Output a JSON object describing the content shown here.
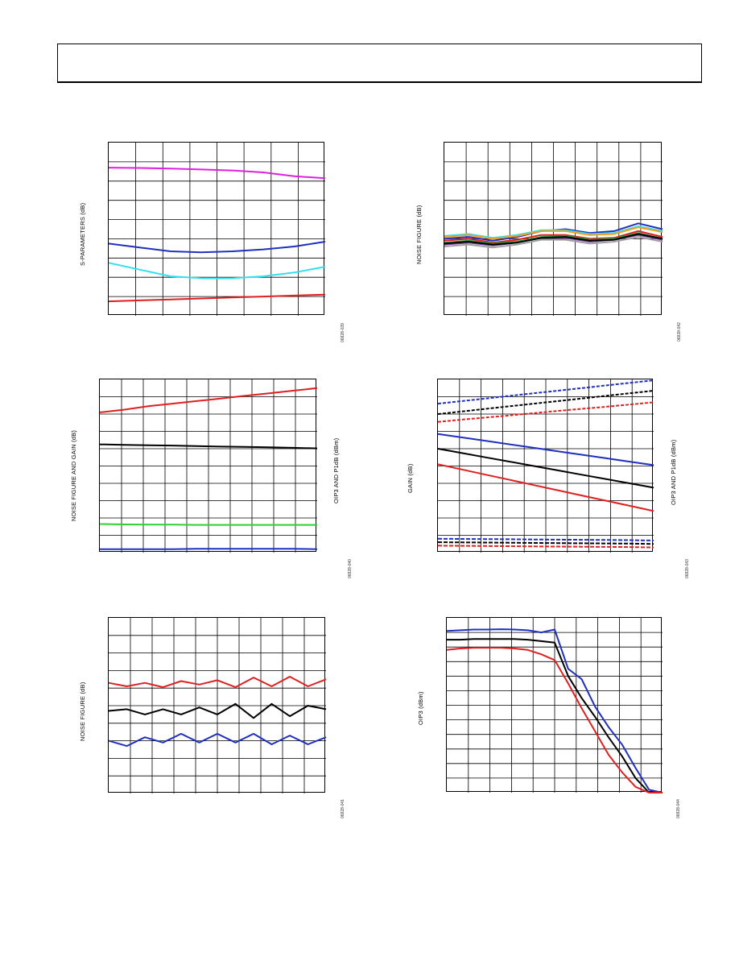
{
  "charts": [
    {
      "id": "c1",
      "type": "line",
      "ylabel": "S-PARAMETERS (dB)",
      "figure_id": "06828-039",
      "grid": {
        "cols": 8,
        "rows": 9
      },
      "series": [
        {
          "color": "#e020e0",
          "y": [
            1.3,
            1.32,
            1.35,
            1.4,
            1.45,
            1.55,
            1.75,
            1.85
          ]
        },
        {
          "color": "#2030c0",
          "y": [
            5.25,
            5.45,
            5.65,
            5.7,
            5.65,
            5.55,
            5.4,
            5.15
          ]
        },
        {
          "color": "#30e0f0",
          "y": [
            6.25,
            6.6,
            6.95,
            7.05,
            7.05,
            6.95,
            6.75,
            6.45
          ]
        },
        {
          "color": "#e02020",
          "y": [
            8.25,
            8.2,
            8.15,
            8.1,
            8.05,
            8.0,
            7.95,
            7.9
          ]
        }
      ]
    },
    {
      "id": "c2",
      "type": "line",
      "ylabel": "NOISE FIGURE (dB)",
      "figure_id": "06828-042",
      "grid": {
        "cols": 10,
        "rows": 9
      },
      "series": [
        {
          "color": "#2030c0",
          "y": [
            5.0,
            4.9,
            5.1,
            4.9,
            4.6,
            4.5,
            4.7,
            4.6,
            4.2,
            4.5
          ]
        },
        {
          "color": "#30e0f0",
          "y": [
            4.85,
            4.75,
            4.95,
            4.8,
            4.55,
            4.55,
            4.75,
            4.7,
            4.35,
            4.6
          ]
        },
        {
          "color": "#f0a020",
          "y": [
            4.9,
            4.8,
            5.0,
            4.85,
            4.6,
            4.6,
            4.8,
            4.75,
            4.4,
            4.65
          ]
        },
        {
          "color": "#e02020",
          "y": [
            5.1,
            5.0,
            5.2,
            5.05,
            4.8,
            4.8,
            5.0,
            4.95,
            4.6,
            4.9
          ]
        },
        {
          "color": "#20a040",
          "y": [
            5.2,
            5.1,
            5.25,
            5.15,
            4.9,
            4.85,
            5.05,
            5.0,
            4.7,
            5.0
          ]
        },
        {
          "color": "#8040a0",
          "y": [
            5.3,
            5.2,
            5.35,
            5.2,
            4.95,
            4.95,
            5.15,
            5.05,
            4.8,
            5.05
          ]
        },
        {
          "color": "#000000",
          "y": [
            5.25,
            5.15,
            5.3,
            5.2,
            4.95,
            4.9,
            5.1,
            5.05,
            4.75,
            5.0
          ]
        },
        {
          "color": "#a0a0a0",
          "y": [
            5.4,
            5.3,
            5.45,
            5.3,
            5.05,
            5.05,
            5.25,
            5.15,
            4.9,
            5.15
          ]
        }
      ]
    },
    {
      "id": "c3",
      "type": "line",
      "ylabel": "NOISE FIGURE AND GAIN (dB)",
      "y2label": "OIP3 AND P1dB (dBm)",
      "figure_id": "06828-040",
      "grid": {
        "cols": 10,
        "rows": 10
      },
      "series": [
        {
          "color": "#e02020",
          "y": [
            1.9,
            1.75,
            1.55,
            1.4,
            1.25,
            1.1,
            0.95,
            0.8,
            0.65,
            0.5
          ]
        },
        {
          "color": "#000000",
          "y": [
            3.75,
            3.78,
            3.8,
            3.82,
            3.85,
            3.88,
            3.9,
            3.92,
            3.95,
            3.98
          ]
        },
        {
          "color": "#30d030",
          "y": [
            8.35,
            8.37,
            8.38,
            8.38,
            8.4,
            8.4,
            8.4,
            8.4,
            8.4,
            8.4
          ]
        },
        {
          "color": "#2030c0",
          "y": [
            9.8,
            9.8,
            9.8,
            9.8,
            9.78,
            9.78,
            9.78,
            9.78,
            9.78,
            9.8
          ]
        }
      ]
    },
    {
      "id": "c4",
      "type": "line",
      "ylabel": "GAIN (dB)",
      "y2label": "OIP3 AND P1dB (dBm)",
      "figure_id": "06828-043",
      "grid": {
        "cols": 10,
        "rows": 10
      },
      "series": [
        {
          "color": "#2030c0",
          "dash": "4,2",
          "y": [
            1.4,
            1.25,
            1.1,
            0.95,
            0.8,
            0.65,
            0.5,
            0.35,
            0.2,
            0.05
          ]
        },
        {
          "color": "#000000",
          "dash": "4,2",
          "y": [
            2.0,
            1.85,
            1.7,
            1.55,
            1.4,
            1.25,
            1.1,
            0.95,
            0.8,
            0.65
          ]
        },
        {
          "color": "#e02020",
          "dash": "4,2",
          "y": [
            2.45,
            2.32,
            2.2,
            2.08,
            1.95,
            1.82,
            1.7,
            1.58,
            1.45,
            1.32
          ]
        },
        {
          "color": "#2030c0",
          "y": [
            3.15,
            3.35,
            3.55,
            3.75,
            3.95,
            4.15,
            4.35,
            4.55,
            4.75,
            4.95
          ]
        },
        {
          "color": "#000000",
          "y": [
            4.0,
            4.25,
            4.5,
            4.75,
            5.0,
            5.25,
            5.5,
            5.75,
            6.0,
            6.25
          ]
        },
        {
          "color": "#e02020",
          "y": [
            4.9,
            5.2,
            5.5,
            5.8,
            6.1,
            6.4,
            6.7,
            7.0,
            7.3,
            7.6
          ]
        },
        {
          "color": "#2030c0",
          "dash": "5,2",
          "y": [
            9.2,
            9.21,
            9.22,
            9.23,
            9.24,
            9.25,
            9.26,
            9.27,
            9.28,
            9.3
          ]
        },
        {
          "color": "#000000",
          "dash": "5,2",
          "y": [
            9.4,
            9.41,
            9.42,
            9.43,
            9.44,
            9.45,
            9.46,
            9.47,
            9.48,
            9.5
          ]
        },
        {
          "color": "#e02020",
          "dash": "5,2",
          "y": [
            9.6,
            9.61,
            9.62,
            9.63,
            9.64,
            9.65,
            9.66,
            9.67,
            9.68,
            9.7
          ]
        }
      ]
    },
    {
      "id": "c5",
      "type": "line",
      "ylabel": "NOISE FIGURE (dB)",
      "figure_id": "06828-041",
      "grid": {
        "cols": 10,
        "rows": 10
      },
      "series": [
        {
          "color": "#e02020",
          "y": [
            3.7,
            3.9,
            3.7,
            3.95,
            3.6,
            3.8,
            3.55,
            3.95,
            3.4,
            3.9,
            3.35,
            3.9,
            3.5
          ]
        },
        {
          "color": "#000000",
          "y": [
            5.3,
            5.2,
            5.5,
            5.2,
            5.5,
            5.1,
            5.5,
            4.9,
            5.7,
            4.9,
            5.6,
            5.0,
            5.2
          ]
        },
        {
          "color": "#2030c0",
          "y": [
            7.0,
            7.3,
            6.8,
            7.1,
            6.6,
            7.1,
            6.6,
            7.1,
            6.6,
            7.2,
            6.7,
            7.2,
            6.8
          ]
        }
      ]
    },
    {
      "id": "c6",
      "type": "line",
      "ylabel": "OIP3 (dBm)",
      "figure_id": "06828-044",
      "grid": {
        "cols": 10,
        "rows": 12
      },
      "series": [
        {
          "color": "#2030c0",
          "y": [
            0.9,
            0.85,
            0.8,
            0.8,
            0.78,
            0.8,
            0.85,
            1.0,
            0.8,
            3.5,
            4.2,
            6.1,
            7.5,
            8.7,
            10.3,
            11.8,
            12.0
          ]
        },
        {
          "color": "#000000",
          "y": [
            1.5,
            1.5,
            1.45,
            1.45,
            1.45,
            1.45,
            1.5,
            1.6,
            1.7,
            4.0,
            5.5,
            6.8,
            8.2,
            9.5,
            11.0,
            12.0,
            12.0
          ]
        },
        {
          "color": "#e02020",
          "y": [
            2.2,
            2.1,
            2.05,
            2.05,
            2.05,
            2.1,
            2.2,
            2.5,
            2.9,
            4.5,
            6.2,
            7.8,
            9.4,
            10.6,
            11.6,
            12.0,
            12.0
          ]
        }
      ]
    }
  ]
}
